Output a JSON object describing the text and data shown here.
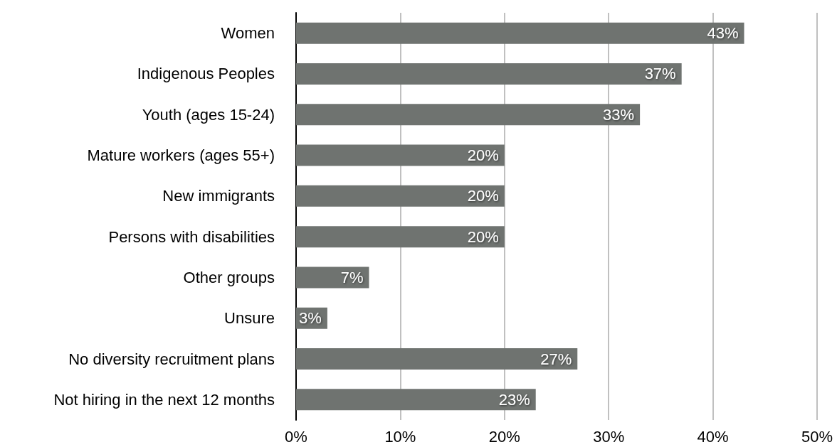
{
  "chart_data": {
    "type": "bar",
    "orientation": "horizontal",
    "categories": [
      "Women",
      "Indigenous Peoples",
      "Youth (ages 15-24)",
      "Mature workers (ages 55+)",
      "New immigrants",
      "Persons with disabilities",
      "Other groups",
      "Unsure",
      "No diversity recruitment plans",
      "Not hiring in the next 12 months"
    ],
    "values": [
      43,
      37,
      33,
      20,
      20,
      20,
      7,
      3,
      27,
      23
    ],
    "value_labels": [
      "43%",
      "37%",
      "33%",
      "20%",
      "20%",
      "20%",
      "7%",
      "3%",
      "27%",
      "23%"
    ],
    "color": "#6f7370",
    "xlim": [
      0,
      50
    ],
    "xticks": [
      {
        "value": 0,
        "label": "0%"
      },
      {
        "value": 10,
        "label": "10%"
      },
      {
        "value": 20,
        "label": "20%"
      },
      {
        "value": 30,
        "label": "30%"
      },
      {
        "value": 40,
        "label": "40%"
      },
      {
        "value": 50,
        "label": "50%"
      }
    ],
    "grid": "x"
  }
}
